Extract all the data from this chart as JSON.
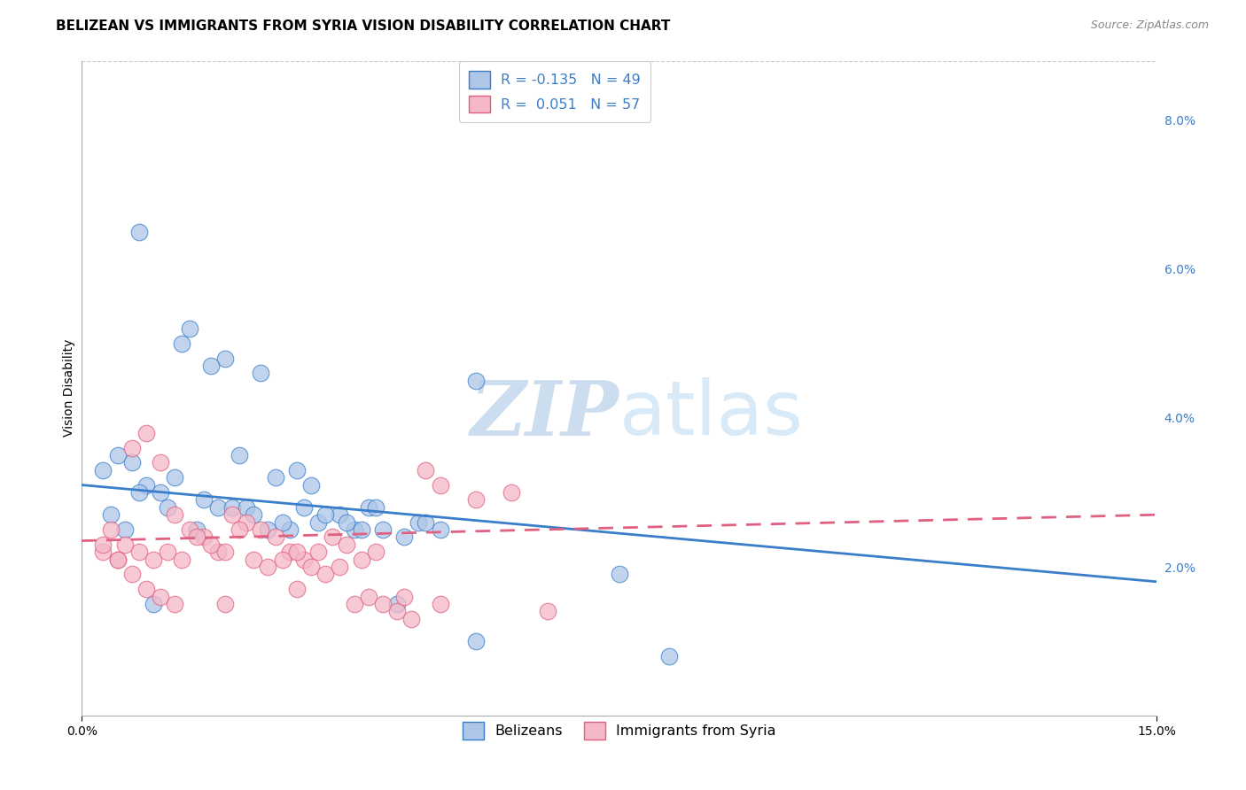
{
  "title": "BELIZEAN VS IMMIGRANTS FROM SYRIA VISION DISABILITY CORRELATION CHART",
  "source": "Source: ZipAtlas.com",
  "ylabel": "Vision Disability",
  "xlim": [
    0.0,
    0.15
  ],
  "ylim": [
    0.0,
    0.088
  ],
  "yticks": [
    0.02,
    0.04,
    0.06,
    0.08
  ],
  "ytick_labels": [
    "2.0%",
    "4.0%",
    "6.0%",
    "8.0%"
  ],
  "xtick_labels": [
    "0.0%",
    "15.0%"
  ],
  "xtick_pos": [
    0.0,
    0.15
  ],
  "legend_entries": [
    {
      "label": "R = -0.135   N = 49",
      "color": "#aec6e8"
    },
    {
      "label": "R =  0.051   N = 57",
      "color": "#f4b8c8"
    }
  ],
  "blue_scatter_x": [
    0.008,
    0.014,
    0.02,
    0.025,
    0.03,
    0.015,
    0.018,
    0.022,
    0.027,
    0.032,
    0.005,
    0.007,
    0.009,
    0.011,
    0.013,
    0.017,
    0.019,
    0.021,
    0.023,
    0.026,
    0.029,
    0.031,
    0.033,
    0.036,
    0.038,
    0.04,
    0.042,
    0.045,
    0.047,
    0.05,
    0.003,
    0.004,
    0.006,
    0.008,
    0.01,
    0.012,
    0.016,
    0.024,
    0.028,
    0.034,
    0.037,
    0.039,
    0.041,
    0.044,
    0.048,
    0.055,
    0.075,
    0.082,
    0.055
  ],
  "blue_scatter_y": [
    0.065,
    0.05,
    0.048,
    0.046,
    0.033,
    0.052,
    0.047,
    0.035,
    0.032,
    0.031,
    0.035,
    0.034,
    0.031,
    0.03,
    0.032,
    0.029,
    0.028,
    0.028,
    0.028,
    0.025,
    0.025,
    0.028,
    0.026,
    0.027,
    0.025,
    0.028,
    0.025,
    0.024,
    0.026,
    0.025,
    0.033,
    0.027,
    0.025,
    0.03,
    0.015,
    0.028,
    0.025,
    0.027,
    0.026,
    0.027,
    0.026,
    0.025,
    0.028,
    0.015,
    0.026,
    0.045,
    0.019,
    0.008,
    0.01
  ],
  "pink_scatter_x": [
    0.003,
    0.005,
    0.007,
    0.009,
    0.011,
    0.013,
    0.015,
    0.017,
    0.019,
    0.021,
    0.023,
    0.025,
    0.027,
    0.029,
    0.031,
    0.033,
    0.035,
    0.037,
    0.039,
    0.041,
    0.004,
    0.006,
    0.008,
    0.01,
    0.012,
    0.014,
    0.016,
    0.018,
    0.02,
    0.022,
    0.024,
    0.026,
    0.028,
    0.03,
    0.032,
    0.034,
    0.036,
    0.038,
    0.04,
    0.042,
    0.044,
    0.046,
    0.048,
    0.05,
    0.055,
    0.06,
    0.065,
    0.003,
    0.005,
    0.007,
    0.009,
    0.011,
    0.013,
    0.02,
    0.03,
    0.045,
    0.05
  ],
  "pink_scatter_y": [
    0.022,
    0.021,
    0.036,
    0.038,
    0.034,
    0.027,
    0.025,
    0.024,
    0.022,
    0.027,
    0.026,
    0.025,
    0.024,
    0.022,
    0.021,
    0.022,
    0.024,
    0.023,
    0.021,
    0.022,
    0.025,
    0.023,
    0.022,
    0.021,
    0.022,
    0.021,
    0.024,
    0.023,
    0.022,
    0.025,
    0.021,
    0.02,
    0.021,
    0.022,
    0.02,
    0.019,
    0.02,
    0.015,
    0.016,
    0.015,
    0.014,
    0.013,
    0.033,
    0.031,
    0.029,
    0.03,
    0.014,
    0.023,
    0.021,
    0.019,
    0.017,
    0.016,
    0.015,
    0.015,
    0.017,
    0.016,
    0.015
  ],
  "blue_line_x": [
    0.0,
    0.15
  ],
  "blue_line_y": [
    0.031,
    0.018
  ],
  "pink_line_x": [
    0.0,
    0.15
  ],
  "pink_line_y": [
    0.0235,
    0.027
  ],
  "scatter_color_blue": "#aec6e8",
  "scatter_color_pink": "#f4b8c8",
  "line_color_blue": "#3a7eca",
  "line_color_pink": "#e06080",
  "background_color": "#ffffff",
  "grid_color": "#cccccc",
  "title_fontsize": 11,
  "axis_label_fontsize": 10,
  "tick_fontsize": 10,
  "legend_label_blue": "Belizeans",
  "legend_label_pink": "Immigrants from Syria"
}
